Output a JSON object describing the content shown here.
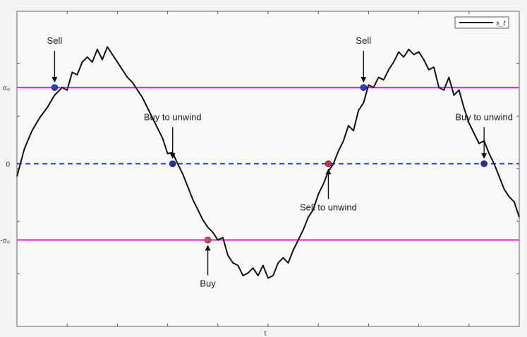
{
  "chart_data": {
    "type": "line",
    "title": "",
    "xlabel": "t",
    "ylabel": "",
    "xlim": [
      0,
      100
    ],
    "ylim": [
      -3.2,
      3.0
    ],
    "grid": false,
    "legend_placement": "top-right",
    "y_tick_labels": [
      {
        "y": 1.5,
        "text": "σ₀"
      },
      {
        "y": 0.0,
        "text": "0"
      },
      {
        "y": -1.5,
        "text": "-σ₀"
      }
    ],
    "series": [
      {
        "name": "s_t",
        "color": "#111111",
        "x": [
          0,
          1.5,
          3,
          4.5,
          6,
          7.5,
          9,
          10,
          11,
          12,
          13,
          14,
          15,
          16,
          17,
          18,
          19,
          20,
          21,
          22,
          23,
          24,
          25,
          26,
          27,
          28,
          29,
          30,
          31,
          32,
          33,
          34,
          35,
          36,
          37,
          38,
          39,
          40,
          41,
          42,
          43,
          44,
          45,
          46,
          47,
          48,
          49,
          50,
          51,
          52,
          53,
          54,
          55,
          56,
          57,
          58,
          59,
          60,
          61,
          62,
          63,
          64,
          65,
          66,
          67,
          68,
          69,
          70,
          71,
          72,
          73,
          74,
          75,
          76,
          77,
          78,
          79,
          80,
          81,
          82,
          83,
          84,
          85,
          86,
          87,
          88,
          89,
          90,
          91,
          92,
          93,
          94,
          95,
          96,
          97,
          98,
          99,
          100
        ],
        "values": [
          -0.25,
          0.3,
          0.65,
          0.9,
          1.1,
          1.35,
          1.5,
          1.45,
          1.8,
          1.75,
          2.0,
          2.1,
          2.0,
          2.25,
          2.05,
          2.3,
          2.15,
          2.0,
          1.85,
          1.7,
          1.6,
          1.45,
          1.3,
          1.1,
          0.9,
          0.7,
          0.5,
          0.2,
          0.22,
          0.0,
          -0.2,
          -0.45,
          -0.7,
          -0.9,
          -1.1,
          -1.25,
          -1.35,
          -1.5,
          -1.45,
          -1.8,
          -1.95,
          -2.0,
          -2.2,
          -2.15,
          -2.05,
          -2.2,
          -2.0,
          -2.25,
          -2.2,
          -1.95,
          -1.85,
          -1.95,
          -1.7,
          -1.5,
          -1.3,
          -1.05,
          -0.9,
          -0.6,
          -0.4,
          -0.15,
          0.0,
          0.25,
          0.45,
          0.75,
          0.65,
          1.05,
          1.2,
          1.55,
          1.5,
          1.7,
          1.65,
          1.85,
          2.0,
          2.2,
          2.1,
          2.25,
          2.15,
          2.2,
          2.05,
          1.85,
          1.9,
          1.5,
          1.45,
          1.7,
          1.35,
          1.45,
          1.1,
          0.8,
          0.6,
          0.4,
          0.45,
          0.2,
          0.0,
          -0.25,
          -0.5,
          -0.65,
          -0.75,
          -1.05
        ]
      },
      {
        "name": "",
        "color": "#ee22cc",
        "style": "solid",
        "x": [
          0,
          100
        ],
        "values": [
          1.5,
          1.5
        ]
      },
      {
        "name": "",
        "color": "#ee22cc",
        "style": "solid",
        "x": [
          0,
          100
        ],
        "values": [
          -1.5,
          -1.5
        ]
      },
      {
        "name": "",
        "color": "#2233cc",
        "style": "dashed",
        "x": [
          0,
          100
        ],
        "values": [
          0,
          0
        ]
      }
    ],
    "markers": [
      {
        "label": "Sell",
        "x": 7.5,
        "y": 1.5,
        "color": "#1f3fd6",
        "arrow": "down"
      },
      {
        "label": "Buy to unwind",
        "x": 31,
        "y": 0.0,
        "color": "#2233aa",
        "arrow": "down"
      },
      {
        "label": "Buy",
        "x": 38,
        "y": -1.5,
        "color": "#d04a66",
        "arrow": "up"
      },
      {
        "label": "Sell to unwind",
        "x": 62,
        "y": 0.0,
        "color": "#cc3344",
        "arrow": "up"
      },
      {
        "label": "Sell",
        "x": 69,
        "y": 1.5,
        "color": "#1f3fd6",
        "arrow": "down"
      },
      {
        "label": "Buy to unwind",
        "x": 93,
        "y": 0.0,
        "color": "#2233aa",
        "arrow": "down"
      }
    ],
    "legend": {
      "entries": [
        "s_t"
      ]
    }
  }
}
